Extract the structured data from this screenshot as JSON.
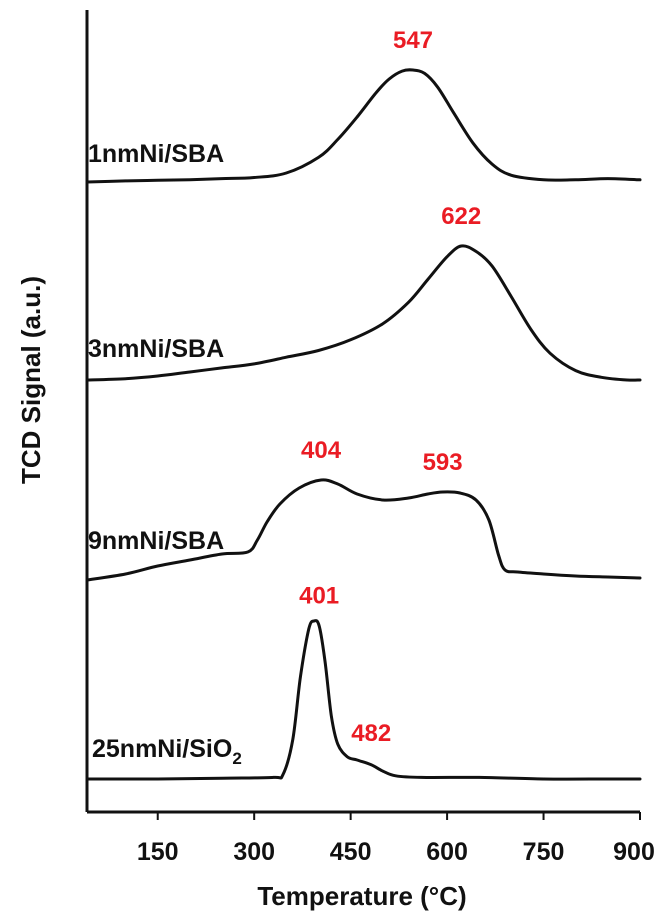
{
  "colors": {
    "curve": "#111111",
    "peak_label": "#ea1c24",
    "axis": "#111111"
  },
  "chart_data": {
    "type": "line",
    "title": "",
    "xlabel": "Temperature (°C)",
    "ylabel": "TCD Signal (a.u.)",
    "xlim": [
      40,
      900
    ],
    "xticks": [
      "150",
      "300",
      "450",
      "600",
      "750",
      "900"
    ],
    "grid": false,
    "legend": "none",
    "series": [
      {
        "name": "1nmNi/SBA",
        "label_prefix": "1nmNi/SBA",
        "label_sub": "",
        "peaks": [
          {
            "x": 547,
            "label": "547"
          }
        ],
        "x": [
          40,
          100,
          150,
          200,
          250,
          300,
          350,
          400,
          430,
          460,
          490,
          510,
          530,
          547,
          565,
          585,
          610,
          640,
          670,
          700,
          750,
          800,
          850,
          900
        ],
        "y": [
          0,
          0.01,
          0.015,
          0.02,
          0.03,
          0.04,
          0.08,
          0.22,
          0.38,
          0.58,
          0.8,
          0.92,
          0.99,
          1.0,
          0.97,
          0.85,
          0.62,
          0.35,
          0.16,
          0.06,
          0.02,
          0.02,
          0.03,
          0.02
        ]
      },
      {
        "name": "3nmNi/SBA",
        "label_prefix": "3nmNi/SBA",
        "label_sub": "",
        "peaks": [
          {
            "x": 622,
            "label": "622"
          }
        ],
        "x": [
          40,
          100,
          150,
          200,
          250,
          300,
          350,
          400,
          450,
          500,
          540,
          570,
          600,
          622,
          645,
          670,
          700,
          730,
          760,
          800,
          840,
          880,
          900
        ],
        "y": [
          0,
          0.01,
          0.03,
          0.06,
          0.09,
          0.12,
          0.17,
          0.22,
          0.3,
          0.42,
          0.58,
          0.75,
          0.92,
          1.0,
          0.96,
          0.85,
          0.62,
          0.38,
          0.2,
          0.07,
          0.02,
          0.0,
          0.0
        ]
      },
      {
        "name": "9nmNi/SBA",
        "label_prefix": "9nmNi/SBA",
        "label_sub": "",
        "peaks": [
          {
            "x": 404,
            "label": "404"
          },
          {
            "x": 593,
            "label": "593"
          }
        ],
        "x": [
          40,
          100,
          150,
          200,
          250,
          290,
          305,
          320,
          340,
          370,
          404,
          430,
          460,
          500,
          540,
          570,
          593,
          620,
          645,
          665,
          680,
          690,
          710,
          750,
          800,
          850,
          900
        ],
        "y": [
          0,
          0.06,
          0.14,
          0.2,
          0.26,
          0.28,
          0.4,
          0.58,
          0.76,
          0.92,
          1.0,
          0.96,
          0.86,
          0.8,
          0.82,
          0.86,
          0.88,
          0.87,
          0.8,
          0.6,
          0.25,
          0.1,
          0.08,
          0.06,
          0.04,
          0.03,
          0.02
        ]
      },
      {
        "name": "25nmNi/SiO2",
        "label_prefix": "25nmNi/SiO",
        "label_sub": "2",
        "peaks": [
          {
            "x": 401,
            "label": "401"
          },
          {
            "x": 482,
            "label": "482"
          }
        ],
        "x": [
          40,
          150,
          250,
          330,
          345,
          360,
          372,
          385,
          393,
          401,
          410,
          420,
          430,
          445,
          460,
          482,
          500,
          520,
          560,
          650,
          750,
          850,
          900
        ],
        "y": [
          0,
          0.0,
          0.005,
          0.01,
          0.03,
          0.25,
          0.65,
          0.95,
          1.0,
          0.97,
          0.75,
          0.4,
          0.22,
          0.14,
          0.12,
          0.09,
          0.05,
          0.02,
          0.01,
          0.01,
          0.0,
          0.0,
          0.0
        ]
      }
    ]
  }
}
